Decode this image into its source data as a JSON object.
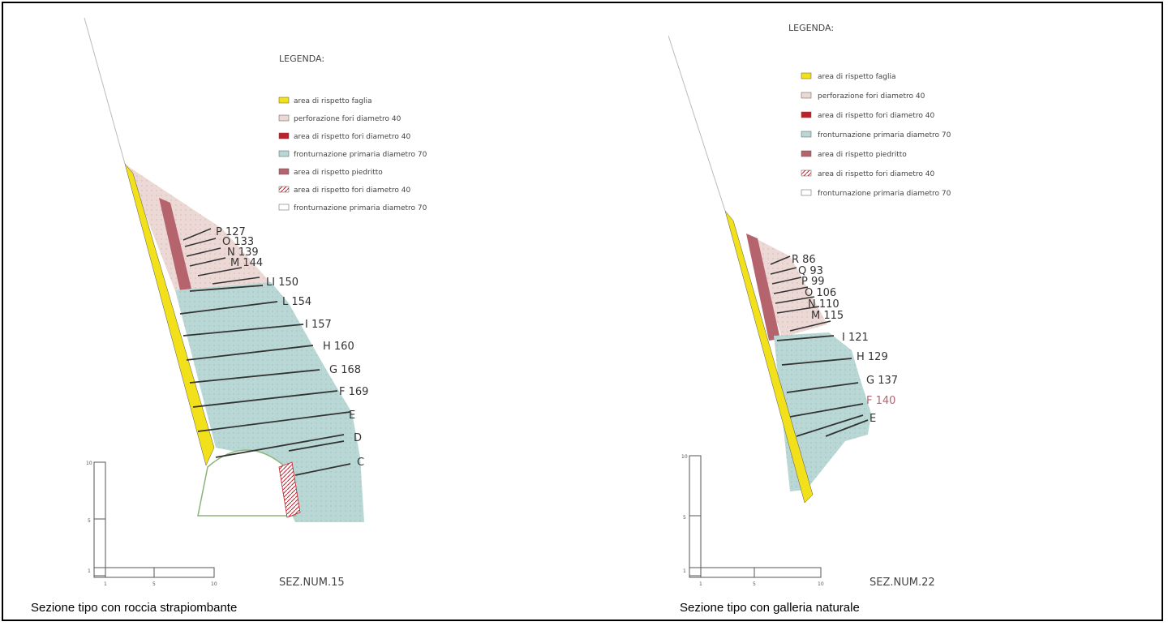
{
  "colors": {
    "yellow": "#f2e11a",
    "pink_light": "#ecd8d5",
    "red": "#c0202a",
    "teal": "#b9d7d4",
    "maroon": "#b5646e",
    "outline": "#222222",
    "tunnel_green": "#8ab47a"
  },
  "left": {
    "legend_title": "LEGENDA:",
    "legend_items": [
      {
        "label": "area di rispetto faglia",
        "swatch": "yellow"
      },
      {
        "label": "perforazione fori diametro 40",
        "swatch": "pink"
      },
      {
        "label": "area di rispetto fori diametro 40",
        "swatch": "red"
      },
      {
        "label": "fronturnazione primaria diametro 70",
        "swatch": "teal"
      },
      {
        "label": "area di rispetto piedritto",
        "swatch": "maroon"
      },
      {
        "label": "area di rispetto fori diametro 40",
        "swatch": "hatch"
      },
      {
        "label": "fronturnazione primaria diametro 70",
        "swatch": "white"
      }
    ],
    "rows": [
      "P  127",
      "O  133",
      "N  139",
      "M  144",
      "LI  150",
      "L  154",
      "I  157",
      "H  160",
      "G  168",
      "F  169",
      "E",
      "D",
      "C"
    ],
    "section_label": "SEZ.NUM.15",
    "scale_ticks_y": [
      "10",
      "5",
      "1"
    ],
    "scale_ticks_x": [
      "1",
      "5",
      "10"
    ],
    "caption": "Sezione tipo con roccia strapiombante"
  },
  "right": {
    "legend_title": "LEGENDA:",
    "legend_items": [
      {
        "label": "area di rispetto faglia",
        "swatch": "yellow"
      },
      {
        "label": "perforazione fori diametro 40",
        "swatch": "pink"
      },
      {
        "label": "area di rispetto fori diametro 40",
        "swatch": "red"
      },
      {
        "label": "fronturnazione primaria diametro 70",
        "swatch": "teal"
      },
      {
        "label": "area di rispetto piedritto",
        "swatch": "maroon"
      },
      {
        "label": "area di rispetto fori diametro 40",
        "swatch": "hatch"
      },
      {
        "label": "fronturnazione primaria diametro 70",
        "swatch": "white"
      }
    ],
    "rows": [
      "R  86",
      "Q  93",
      "P  99",
      "O  106",
      "N  110",
      "M  115",
      "I  121",
      "H  129",
      "G  137",
      "F  140",
      "E"
    ],
    "section_label": "SEZ.NUM.22",
    "scale_ticks_y": [
      "10",
      "5",
      "1"
    ],
    "scale_ticks_x": [
      "1",
      "5",
      "10"
    ],
    "caption": "Sezione tipo con galleria naturale"
  }
}
